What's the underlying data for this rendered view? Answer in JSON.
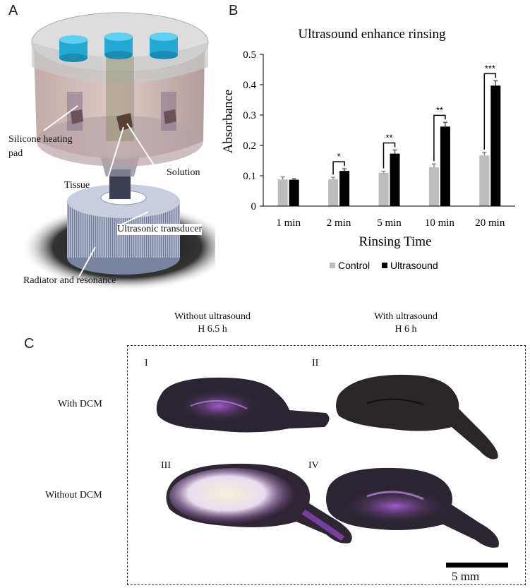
{
  "panels": {
    "a": "A",
    "b": "B",
    "c": "C"
  },
  "panel_a": {
    "labels": {
      "silicone_heating_pad": "Silicone heating pad",
      "solution": "Solution",
      "tissue": "Tissue",
      "ultrasonic_transducer": "Ultrasonic transducer",
      "radiator_and_resonance": "Radiator and resonance"
    },
    "colors": {
      "cap": "#2bb5e0",
      "body": "#c9a7a4",
      "transducer": "#9aa3bf",
      "shadow": "#333333"
    }
  },
  "chart_data": {
    "type": "bar",
    "title": "Ultrasound enhance rinsing",
    "xlabel": "Rinsing Time",
    "ylabel": "Absorbance",
    "ylim": [
      0,
      0.5
    ],
    "yticks": [
      "0",
      "0.1",
      "0.2",
      "0.3",
      "0.4",
      "0.5"
    ],
    "ytick_values": [
      0,
      0.1,
      0.2,
      0.3,
      0.4,
      0.5
    ],
    "categories": [
      "1 min",
      "2 min",
      "5 min",
      "10 min",
      "20 min"
    ],
    "series": [
      {
        "name": "Control",
        "color": "#bdbdbd",
        "values": [
          0.088,
          0.089,
          0.11,
          0.128,
          0.167
        ],
        "errors": [
          0.008,
          0.006,
          0.005,
          0.011,
          0.01
        ]
      },
      {
        "name": "Ultrasound",
        "color": "#000000",
        "values": [
          0.087,
          0.116,
          0.173,
          0.262,
          0.397
        ],
        "errors": [
          0.003,
          0.007,
          0.012,
          0.014,
          0.016
        ]
      }
    ],
    "significance": [
      "",
      "*",
      "**",
      "**",
      "***"
    ],
    "legend": "bottom-center",
    "grid": false
  },
  "panel_c": {
    "col_heads": [
      {
        "line1": "Without ultrasound",
        "line2": "H 6.5 h"
      },
      {
        "line1": "With ultrasound",
        "line2": "H 6 h"
      }
    ],
    "rows": [
      "With DCM",
      "Without DCM"
    ],
    "romans": [
      "I",
      "II",
      "III",
      "IV"
    ],
    "scale": "5 mm",
    "colors": {
      "dark_tissue": "#2a2530",
      "purple": "#6b2e8c",
      "light_core": "#f3efd2"
    }
  }
}
